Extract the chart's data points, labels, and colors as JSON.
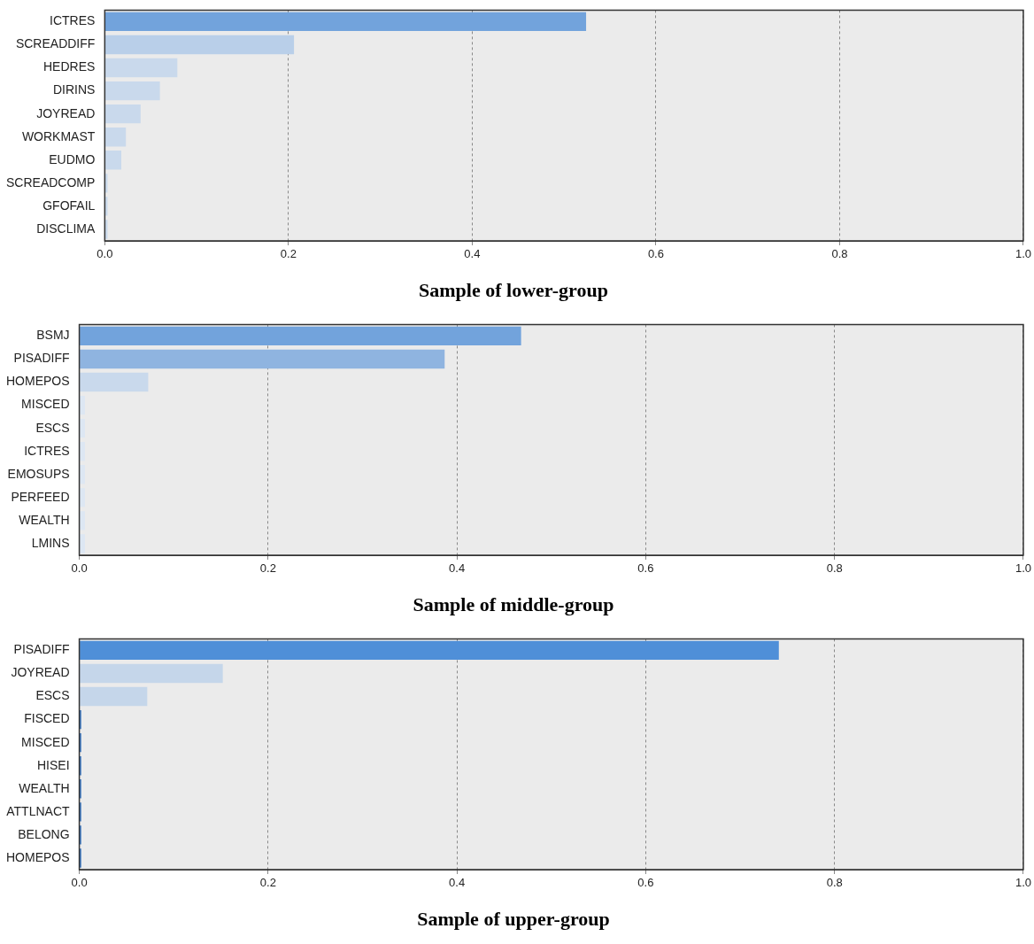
{
  "chart_data": [
    {
      "type": "bar",
      "orientation": "horizontal",
      "title": "Sample of lower-group",
      "categories": [
        "ICTRES",
        "SCREADDIFF",
        "HEDRES",
        "DIRINS",
        "JOYREAD",
        "WORKMAST",
        "EUDMO",
        "SCREADCOMP",
        "GFOFAIL",
        "DISCLIMA"
      ],
      "values": [
        0.524,
        0.206,
        0.079,
        0.06,
        0.039,
        0.023,
        0.018,
        0.003,
        0.003,
        0.003
      ],
      "colors": [
        "#72a3dc",
        "#b9cfe9",
        "#c9d9ec",
        "#c9d9ec",
        "#c9d9ec",
        "#c9d9ec",
        "#c9d9ec",
        "#c9d9ec",
        "#c9d9ec",
        "#c9d9ec"
      ],
      "xlim": [
        0,
        1
      ],
      "xticks": [
        {
          "value": 0,
          "label": "0.0"
        },
        {
          "value": 0.2,
          "label": "0.2"
        },
        {
          "value": 0.4,
          "label": "0.4"
        },
        {
          "value": 0.6,
          "label": "0.6"
        },
        {
          "value": 0.8,
          "label": "0.8"
        },
        {
          "value": 1,
          "label": "1.0"
        }
      ],
      "grid": "x",
      "legend": false
    },
    {
      "type": "bar",
      "orientation": "horizontal",
      "title": "Sample of middle-group",
      "categories": [
        "BSMJ",
        "PISADIFF",
        "HOMEPOS",
        "MISCED",
        "ESCS",
        "ICTRES",
        "EMOSUPS",
        "PERFEED",
        "WEALTH",
        "LMINS"
      ],
      "values": [
        0.468,
        0.387,
        0.073,
        0.006,
        0.006,
        0.006,
        0.006,
        0.006,
        0.006,
        0.006
      ],
      "colors": [
        "#72a3dc",
        "#8fb4e0",
        "#c9d9ec",
        "#dde7f3",
        "#dde7f3",
        "#dde7f3",
        "#dde7f3",
        "#dde7f3",
        "#dde7f3",
        "#dde7f3"
      ],
      "xlim": [
        0,
        1
      ],
      "xticks": [
        {
          "value": 0,
          "label": "0.0"
        },
        {
          "value": 0.2,
          "label": "0.2"
        },
        {
          "value": 0.4,
          "label": "0.4"
        },
        {
          "value": 0.6,
          "label": "0.6"
        },
        {
          "value": 0.8,
          "label": "0.8"
        },
        {
          "value": 1,
          "label": "1.0"
        }
      ],
      "grid": "x",
      "legend": false
    },
    {
      "type": "bar",
      "orientation": "horizontal",
      "title": "Sample of upper-group",
      "categories": [
        "PISADIFF",
        "JOYREAD",
        "ESCS",
        "FISCED",
        "MISCED",
        "HISEI",
        "WEALTH",
        "ATTLNACT",
        "BELONG",
        "HOMEPOS"
      ],
      "values": [
        0.741,
        0.152,
        0.072,
        0.002,
        0.002,
        0.002,
        0.002,
        0.002,
        0.002,
        0.002
      ],
      "colors": [
        "#4f8fd8",
        "#c5d6ea",
        "#c5d6ea",
        "#2f6fbf",
        "#2f6fbf",
        "#2f6fbf",
        "#2f6fbf",
        "#2f6fbf",
        "#2f6fbf",
        "#2f6fbf"
      ],
      "xlim": [
        0,
        1
      ],
      "xticks": [
        {
          "value": 0,
          "label": "0.0"
        },
        {
          "value": 0.2,
          "label": "0.2"
        },
        {
          "value": 0.4,
          "label": "0.4"
        },
        {
          "value": 0.6,
          "label": "0.6"
        },
        {
          "value": 0.8,
          "label": "0.8"
        },
        {
          "value": 1,
          "label": "1.0"
        }
      ],
      "grid": "x",
      "legend": false
    }
  ]
}
